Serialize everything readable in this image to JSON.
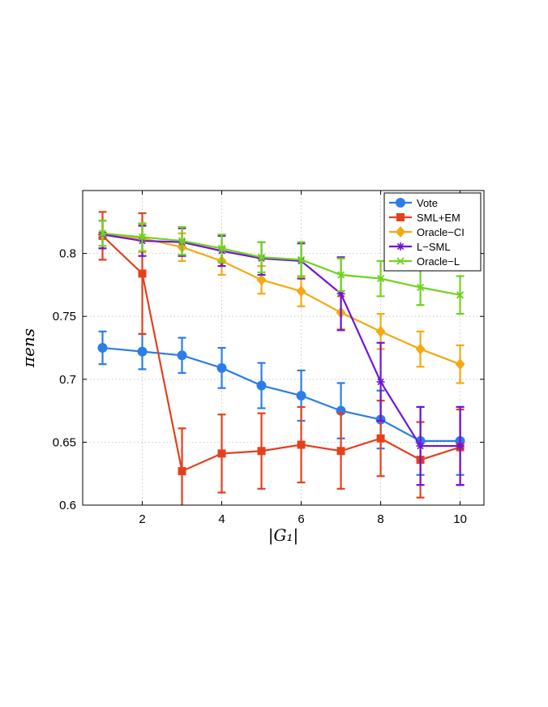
{
  "chart_data": {
    "type": "line",
    "xlabel": "|G₁|",
    "ylabel": "πens",
    "xlim": [
      0.5,
      10.6
    ],
    "ylim": [
      0.6,
      0.85
    ],
    "xticks": [
      2,
      4,
      6,
      8,
      10
    ],
    "yticks": [
      0.6,
      0.65,
      0.7,
      0.75,
      0.8
    ],
    "ytick_labels": [
      "0.6",
      "0.65",
      "0.7",
      "0.75",
      "0.8"
    ],
    "grid": true,
    "legend_position": "top-right",
    "x": [
      1,
      2,
      3,
      4,
      5,
      6,
      7,
      8,
      9,
      10
    ],
    "series": [
      {
        "name": "Vote",
        "color": "#2b7de9",
        "marker": "circle",
        "values": [
          0.725,
          0.722,
          0.719,
          0.709,
          0.695,
          0.687,
          0.675,
          0.668,
          0.651,
          0.651
        ],
        "errors": [
          0.013,
          0.014,
          0.014,
          0.016,
          0.018,
          0.02,
          0.022,
          0.023,
          0.027,
          0.027
        ]
      },
      {
        "name": "SML+EM",
        "color": "#e5401c",
        "marker": "square",
        "values": [
          0.814,
          0.784,
          0.627,
          0.641,
          0.643,
          0.648,
          0.643,
          0.653,
          0.636,
          0.646
        ],
        "errors": [
          0.019,
          0.048,
          0.034,
          0.031,
          0.03,
          0.03,
          0.03,
          0.03,
          0.03,
          0.03
        ]
      },
      {
        "name": "Oracle−CI",
        "color": "#f4a912",
        "marker": "diamond",
        "values": [
          0.815,
          0.812,
          0.805,
          0.794,
          0.779,
          0.77,
          0.753,
          0.738,
          0.724,
          0.712
        ],
        "errors": [
          0.011,
          0.011,
          0.011,
          0.011,
          0.011,
          0.012,
          0.013,
          0.014,
          0.014,
          0.015
        ]
      },
      {
        "name": "L−SML",
        "color": "#7113d9",
        "marker": "asterisk",
        "values": [
          0.815,
          0.81,
          0.809,
          0.802,
          0.796,
          0.794,
          0.768,
          0.698,
          0.647,
          0.647
        ],
        "errors": [
          0.011,
          0.012,
          0.011,
          0.012,
          0.013,
          0.014,
          0.029,
          0.031,
          0.031,
          0.031
        ]
      },
      {
        "name": "Oracle−L",
        "color": "#6fd41e",
        "marker": "x",
        "values": [
          0.816,
          0.813,
          0.81,
          0.804,
          0.797,
          0.795,
          0.783,
          0.78,
          0.773,
          0.767
        ],
        "errors": [
          0.01,
          0.011,
          0.011,
          0.011,
          0.012,
          0.014,
          0.013,
          0.014,
          0.014,
          0.015
        ]
      }
    ]
  }
}
